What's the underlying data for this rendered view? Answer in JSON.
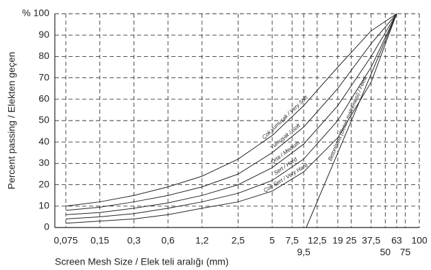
{
  "chart_data": {
    "type": "line",
    "y_label": "Percent passing / Elekten geçen",
    "x_label": "Screen Mesh Size / Elek teli aralığı (mm)",
    "log_x": true,
    "grid": true,
    "color": "#222222",
    "xlim": [
      0.06,
      100
    ],
    "ylim": [
      0,
      100
    ],
    "xticks": [
      {
        "value": 0.075,
        "label": "0,075"
      },
      {
        "value": 0.15,
        "label": "0,15"
      },
      {
        "value": 0.3,
        "label": "0,3"
      },
      {
        "value": 0.6,
        "label": "0,6"
      },
      {
        "value": 1.2,
        "label": "1,2"
      },
      {
        "value": 2.5,
        "label": "2,5"
      },
      5,
      {
        "value": 7.5,
        "label": "7,5"
      },
      {
        "value": 9.5,
        "label": "9,5"
      },
      {
        "value": 12.5,
        "label": "12,5"
      },
      19,
      25,
      {
        "value": 37.5,
        "label": "37,5"
      },
      50,
      63,
      75,
      100
    ],
    "yticks": [
      0,
      10,
      20,
      30,
      40,
      50,
      60,
      70,
      80,
      90,
      {
        "value": 100,
        "label": "% 100"
      }
    ],
    "series": [
      {
        "name": "Çok yumuşak / Very Soft",
        "x": [
          0.075,
          0.15,
          0.3,
          0.6,
          1.2,
          2.5,
          5,
          9.5,
          19,
          37.5,
          63
        ],
        "values": [
          10,
          12,
          15,
          19,
          24,
          32,
          43,
          57,
          75,
          92,
          100
        ]
      },
      {
        "name": "Yumuşak / Soft",
        "x": [
          0.075,
          0.15,
          0.3,
          0.6,
          1.2,
          2.5,
          5,
          9.5,
          19,
          37.5,
          63
        ],
        "values": [
          8,
          9.5,
          12,
          15,
          19,
          25,
          35,
          47,
          65,
          86,
          100
        ]
      },
      {
        "name": "Orta / Medium",
        "x": [
          0.075,
          0.15,
          0.3,
          0.6,
          1.2,
          2.5,
          5,
          9.5,
          19,
          37.5,
          63
        ],
        "values": [
          6,
          7,
          9,
          11.5,
          15,
          20,
          28,
          39,
          57,
          80,
          100
        ]
      },
      {
        "name": "Sert / Hard",
        "x": [
          0.075,
          0.15,
          0.3,
          0.6,
          1.2,
          2.5,
          5,
          9.5,
          19,
          37.5,
          63
        ],
        "values": [
          4,
          5,
          6.5,
          9,
          12,
          16,
          22,
          32,
          50,
          75,
          100
        ]
      },
      {
        "name": "Çok Sert / Very Hard",
        "x": [
          0.075,
          0.15,
          0.3,
          0.6,
          1.2,
          2.5,
          5,
          9.5,
          19,
          37.5,
          63
        ],
        "values": [
          2,
          3,
          4,
          6,
          9,
          12,
          17,
          26,
          42,
          68,
          100
        ]
      },
      {
        "name": "Betonlama (Beton malzemesi) / Feed",
        "x": [
          10,
          63
        ],
        "values": [
          0,
          100
        ]
      }
    ]
  }
}
